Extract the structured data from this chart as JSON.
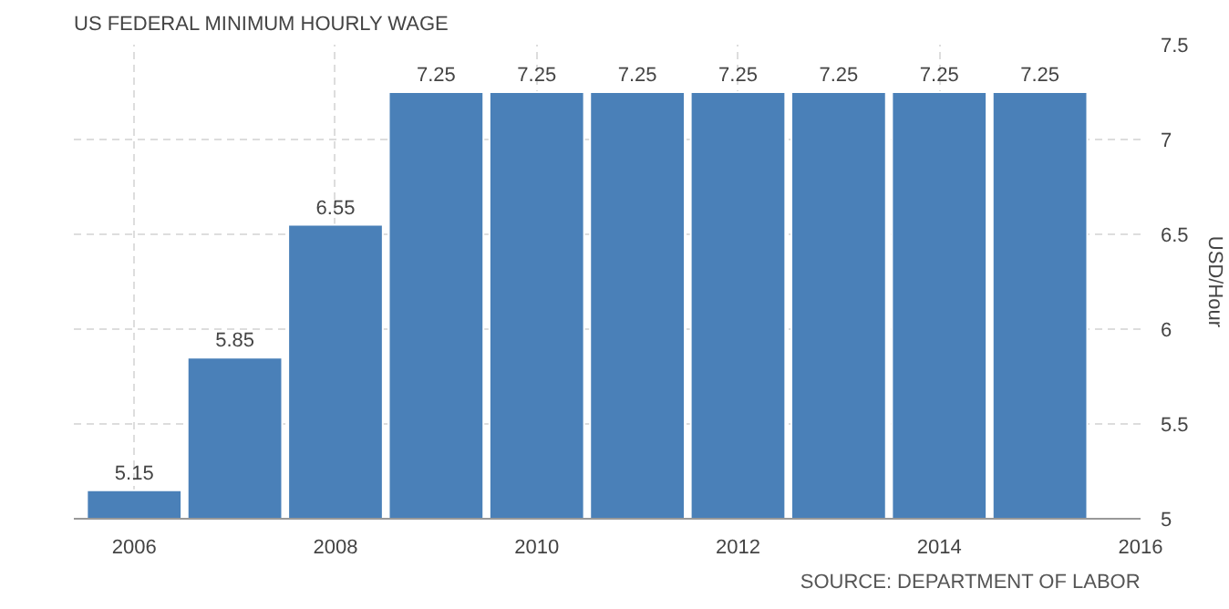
{
  "chart_data": {
    "type": "bar",
    "title": "US FEDERAL MINIMUM HOURLY WAGE",
    "y2label": "USD/Hour",
    "x": [
      2006,
      2007,
      2008,
      2009,
      2010,
      2011,
      2012,
      2013,
      2014,
      2015
    ],
    "series": [
      {
        "color": "#4a80b8",
        "axis": "y2",
        "values": [
          5.15,
          5.85,
          6.55,
          7.25,
          7.25,
          7.25,
          7.25,
          7.25,
          7.25,
          7.25
        ]
      }
    ],
    "xlim": [
      2005.4,
      2016
    ],
    "xticks": [
      2006,
      2008,
      2010,
      2012,
      2014,
      2016
    ],
    "y2lim": [
      5,
      7.5
    ],
    "y2ticks": [
      5,
      5.5,
      6,
      6.5,
      7,
      7.5
    ],
    "grid": true,
    "data_labels": true,
    "annotations": [
      "SOURCE: DEPARTMENT OF LABOR"
    ]
  }
}
